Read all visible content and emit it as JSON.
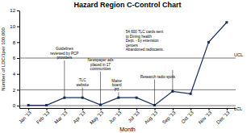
{
  "chart_data": {
    "type": "line",
    "title": "Hazard Region C-Control Chart",
    "x_label": "Month",
    "y_label": "Number of LDC/1per 100,000",
    "categories": [
      "Jan '13",
      "Feb '13",
      "Mar '13",
      "Apr '13",
      "May '13",
      "Jun '13",
      "Jul '13",
      "Aug '13",
      "Sep '13",
      "Oct '13",
      "Nov '13",
      "Dec '13"
    ],
    "values": [
      0.05,
      0.05,
      1.0,
      1.0,
      0.1,
      1.0,
      1.0,
      0.05,
      1.8,
      1.5,
      8.0,
      10.5
    ],
    "color": "#1a2f5e",
    "marker": "square",
    "ylim": [
      -0.3,
      12
    ],
    "yticks": [
      0,
      2,
      4,
      6,
      8,
      10,
      12
    ],
    "control_lines": [
      {
        "value": 6.0,
        "label": "UCL",
        "color": "#555555"
      },
      {
        "value": 2.0,
        "color": "#555555"
      },
      {
        "value": 0.0,
        "label": "LCL",
        "color": "#555555"
      }
    ],
    "annotations": [
      {
        "text": "Guidelines\nreviewed by PCP\nproviders",
        "x": "Mar '13"
      },
      {
        "text": "TLC\nwebsite",
        "x": "Apr '13"
      },
      {
        "text": "Newspaper ads\nplaced in 17\ncommunities",
        "x": "May '13"
      },
      {
        "text": "Maine\nboard\nPT",
        "x": "Jun '13"
      },
      {
        "text": "54,600 TLC cards sent\nto Dining health\nDept. - by extension\ncenters\nAbandoned radiocasts."
      },
      {
        "text": "Research radio spots",
        "x": "Aug '13"
      },
      {
        "x": "Sep '13"
      }
    ]
  }
}
